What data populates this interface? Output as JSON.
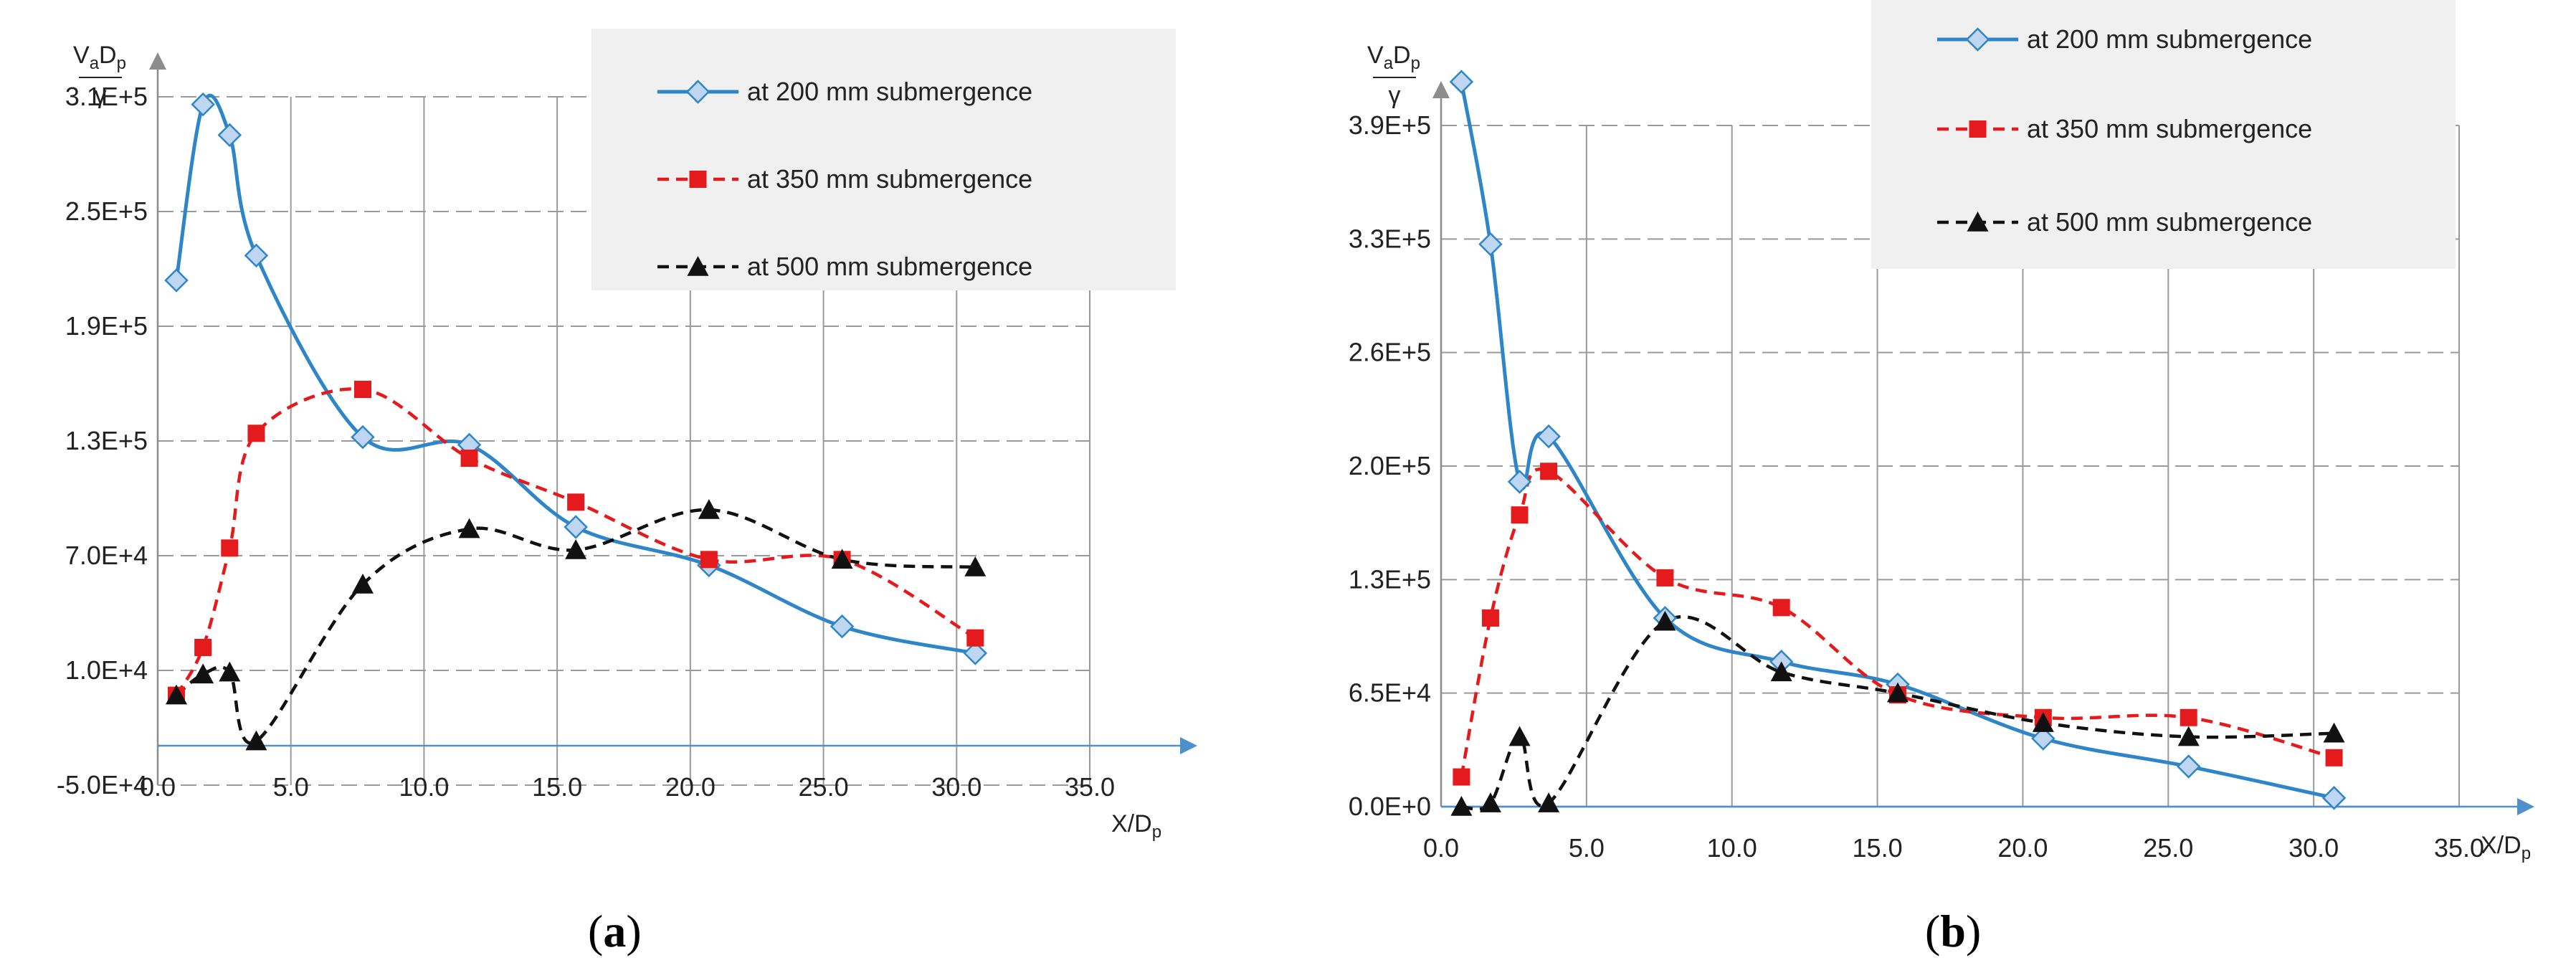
{
  "colors": {
    "s200": "#2E86C9",
    "s200_marker_fill": "#BFD6F2",
    "s350": "#E41A1C",
    "s500": "#111111",
    "grid": "#9A9A9A",
    "axis_arrow": "#4F8FCB",
    "legend_bg": "#F0F0F0"
  },
  "chart_data": [
    {
      "panel": "a",
      "type": "line",
      "ylabel": "VₐDₚ/γ",
      "ylabel_main": "VₐD",
      "ylabel_sub_a": "a",
      "ylabel_sub_p": "p",
      "ylabel_den": "γ",
      "xlabel_main": "X/D",
      "xlabel_sub": "p",
      "x_ticks": [
        "0.0",
        "5.0",
        "10.0",
        "15.0",
        "20.0",
        "25.0",
        "30.0",
        "35.0"
      ],
      "x_tick_values": [
        0,
        5,
        10,
        15,
        20,
        25,
        30,
        35
      ],
      "y_ticks": [
        "-5.0E+4",
        "1.0E+4",
        "7.0E+4",
        "1.3E+5",
        "1.9E+5",
        "2.5E+5",
        "3.1E+5"
      ],
      "y_tick_values": [
        -50000,
        10000,
        70000,
        130000,
        190000,
        250000,
        310000
      ],
      "xlim": [
        0,
        35
      ],
      "ylim": [
        -50000,
        310000
      ],
      "label_open": "(",
      "label_letter": "a",
      "label_close": ")",
      "legend": [
        "at 200 mm submergence",
        "at 350 mm submergence",
        "at 500 mm submergence"
      ],
      "series": [
        {
          "name": "at 200 mm submergence",
          "style": "solid",
          "marker": "diamond",
          "x": [
            0.7,
            1.7,
            2.7,
            3.7,
            7.7,
            11.7,
            15.7,
            20.7,
            25.7,
            30.7
          ],
          "y": [
            214000,
            306000,
            290000,
            227000,
            132000,
            128000,
            85000,
            65000,
            33000,
            19000
          ]
        },
        {
          "name": "at 350 mm submergence",
          "style": "dashed",
          "marker": "square",
          "x": [
            0.7,
            1.7,
            2.7,
            3.7,
            7.7,
            11.7,
            15.7,
            20.7,
            25.7,
            30.7
          ],
          "y": [
            -3000,
            22000,
            74000,
            134000,
            157000,
            121000,
            98000,
            68000,
            68000,
            27000
          ]
        },
        {
          "name": "at 500 mm submergence",
          "style": "dashed",
          "marker": "triangle",
          "x": [
            0.7,
            1.7,
            2.7,
            3.7,
            7.7,
            11.7,
            15.7,
            20.7,
            25.7,
            30.7
          ],
          "y": [
            -3000,
            8000,
            9000,
            -27000,
            55000,
            84000,
            73000,
            94000,
            68000,
            64000
          ]
        }
      ]
    },
    {
      "panel": "b",
      "type": "line",
      "ylabel": "VₐDₚ/γ",
      "ylabel_main": "VₐD",
      "ylabel_sub_a": "a",
      "ylabel_sub_p": "p",
      "ylabel_den": "γ",
      "xlabel_main": "X/D",
      "xlabel_sub": "p",
      "x_ticks": [
        "0.0",
        "5.0",
        "10.0",
        "15.0",
        "20.0",
        "25.0",
        "30.0",
        "35.0"
      ],
      "x_tick_values": [
        0,
        5,
        10,
        15,
        20,
        25,
        30,
        35
      ],
      "y_ticks": [
        "0.0E+0",
        "6.5E+4",
        "1.3E+5",
        "2.0E+5",
        "2.6E+5",
        "3.3E+5",
        "3.9E+5"
      ],
      "y_tick_values": [
        0,
        65000,
        130000,
        195000,
        260000,
        325000,
        390000
      ],
      "xlim": [
        0,
        35
      ],
      "ylim": [
        0,
        390000
      ],
      "label_open": "(",
      "label_letter": "b",
      "label_close": ")",
      "legend": [
        "at 200 mm submergence",
        "at 350 mm submergence",
        "at 500 mm submergence"
      ],
      "series": [
        {
          "name": "at 200 mm submergence",
          "style": "solid",
          "marker": "diamond",
          "x": [
            0.7,
            1.7,
            2.7,
            3.7,
            7.7,
            11.7,
            15.7,
            20.7,
            25.7,
            30.7
          ],
          "y": [
            415000,
            322000,
            186000,
            212000,
            108000,
            83000,
            70000,
            39000,
            23000,
            5000
          ]
        },
        {
          "name": "at 350 mm submergence",
          "style": "dashed",
          "marker": "square",
          "x": [
            0.7,
            1.7,
            2.7,
            3.7,
            7.7,
            11.7,
            15.7,
            20.7,
            25.7,
            30.7
          ],
          "y": [
            17000,
            108000,
            167000,
            192000,
            131000,
            114000,
            64000,
            51000,
            51000,
            28000
          ]
        },
        {
          "name": "at 500 mm submergence",
          "style": "dashed",
          "marker": "triangle",
          "x": [
            0.7,
            1.7,
            2.7,
            3.7,
            7.7,
            11.7,
            15.7,
            20.7,
            25.7,
            30.7
          ],
          "y": [
            0,
            2000,
            40000,
            2000,
            106000,
            77000,
            65000,
            48000,
            40000,
            42000
          ]
        }
      ]
    }
  ]
}
